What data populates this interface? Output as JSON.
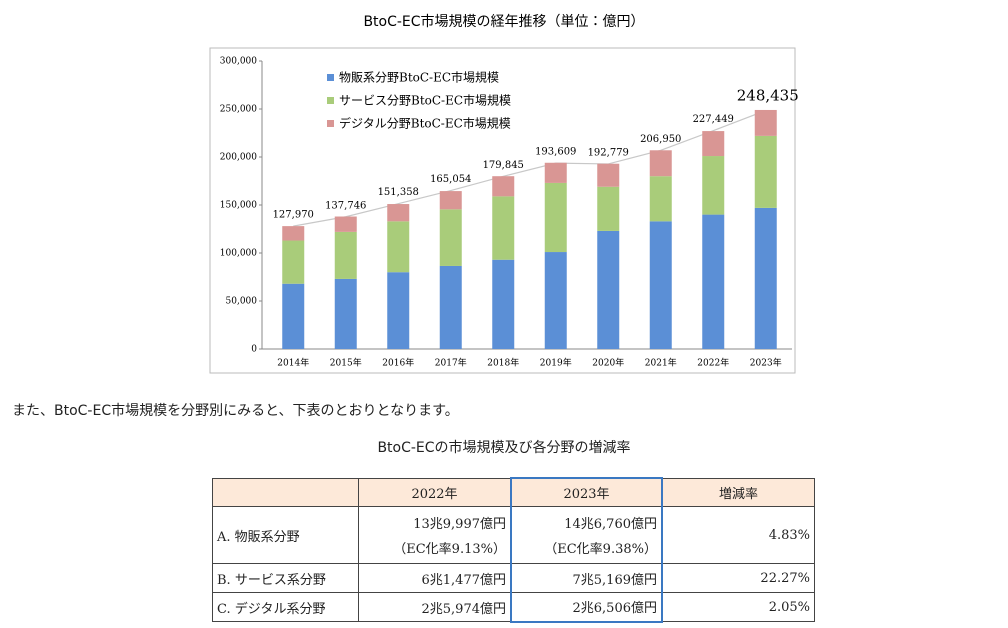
{
  "chart_data": {
    "type": "stacked-bar",
    "title": "BtoC-EC市場規模の経年推移（単位：億円）",
    "categories": [
      "2014年",
      "2015年",
      "2016年",
      "2017年",
      "2018年",
      "2019年",
      "2020年",
      "2021年",
      "2022年",
      "2023年"
    ],
    "series": [
      {
        "name": "物販系分野BtoC-EC市場規模",
        "color": "#5b8fd6",
        "values": [
          68000,
          73000,
          80000,
          86500,
          93000,
          101000,
          123000,
          133000,
          140000,
          147000
        ]
      },
      {
        "name": "サービス分野BtoC-EC市場規模",
        "color": "#a9cc7a",
        "values": [
          45000,
          49000,
          53000,
          59000,
          66000,
          72000,
          46000,
          47000,
          61000,
          75000
        ]
      },
      {
        "name": "デジタル分野BtoC-EC市場規模",
        "color": "#d99694",
        "values": [
          15000,
          16000,
          18000,
          19000,
          21000,
          21000,
          24000,
          27000,
          26000,
          27000
        ]
      }
    ],
    "totals": {
      "values": [
        127970,
        137746,
        151358,
        165054,
        179845,
        193609,
        192779,
        206950,
        227449,
        248435
      ],
      "value_labels": [
        "127,970",
        "137,746",
        "151,358",
        "165,054",
        "179,845",
        "193,609",
        "192,779",
        "206,950",
        "227,449",
        "248,435"
      ]
    },
    "ylim": [
      0,
      300000
    ],
    "yticks": [
      0,
      {
        "value": 50000,
        "label": "50,000"
      },
      {
        "value": 100000,
        "label": "100,000"
      },
      {
        "value": 150000,
        "label": "150,000"
      },
      {
        "value": 200000,
        "label": "200,000"
      },
      {
        "value": 250000,
        "label": "250,000"
      },
      {
        "value": 300000,
        "label": "300,000"
      }
    ],
    "legend": "top-left",
    "grid": false
  },
  "paragraph": "また、BtoC-EC市場規模を分野別にみると、下表のとおりとなります。",
  "table": {
    "title": "BtoC-ECの市場規模及び各分野の増減率",
    "columns": [
      "2022年",
      "2023年",
      "増減率"
    ],
    "rows": [
      {
        "label": "A. 物販系分野",
        "v2022": "13兆9,997億円",
        "n2022": "（EC化率9.13%）",
        "v2023": "14兆6,760億円",
        "n2023": "（EC化率9.38%）",
        "rate": "4.83%"
      },
      {
        "label": "B. サービス系分野",
        "v2022": "6兆1,477億円",
        "v2023": "7兆5,169億円",
        "rate": "22.27%"
      },
      {
        "label": "C. デジタル系分野",
        "v2022": "2兆5,974億円",
        "v2023": "2兆6,506億円",
        "rate": "2.05%"
      }
    ]
  }
}
